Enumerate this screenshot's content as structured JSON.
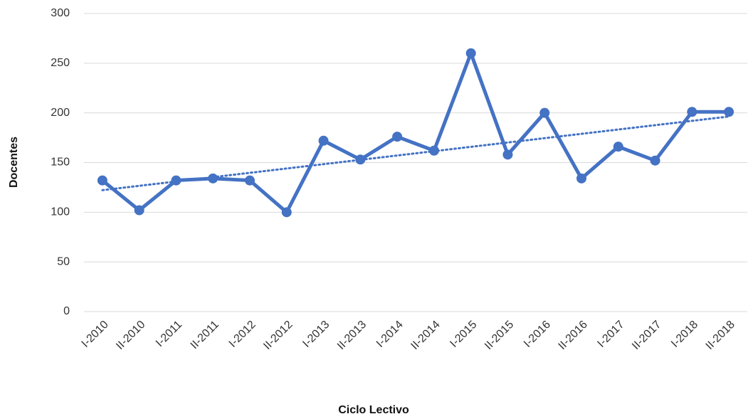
{
  "chart_data": {
    "type": "line",
    "x_label": "Ciclo Lectivo",
    "y_label": "Docentes",
    "categories": [
      "I-2010",
      "II-2010",
      "I-2011",
      "II-2011",
      "I-2012",
      "II-2012",
      "I-2013",
      "II-2013",
      "I-2014",
      "II-2014",
      "I-2015",
      "II-2015",
      "I-2016",
      "II-2016",
      "I-2017",
      "II-2017",
      "I-2018",
      "II-2018"
    ],
    "values": [
      132,
      102,
      132,
      134,
      132,
      100,
      172,
      153,
      176,
      162,
      260,
      158,
      200,
      134,
      166,
      152,
      201,
      201
    ],
    "color": "#4472c4",
    "trendline": true,
    "ylim": [
      0,
      300
    ],
    "yticks": [
      0,
      50,
      100,
      150,
      200,
      250,
      300
    ],
    "grid": true
  }
}
